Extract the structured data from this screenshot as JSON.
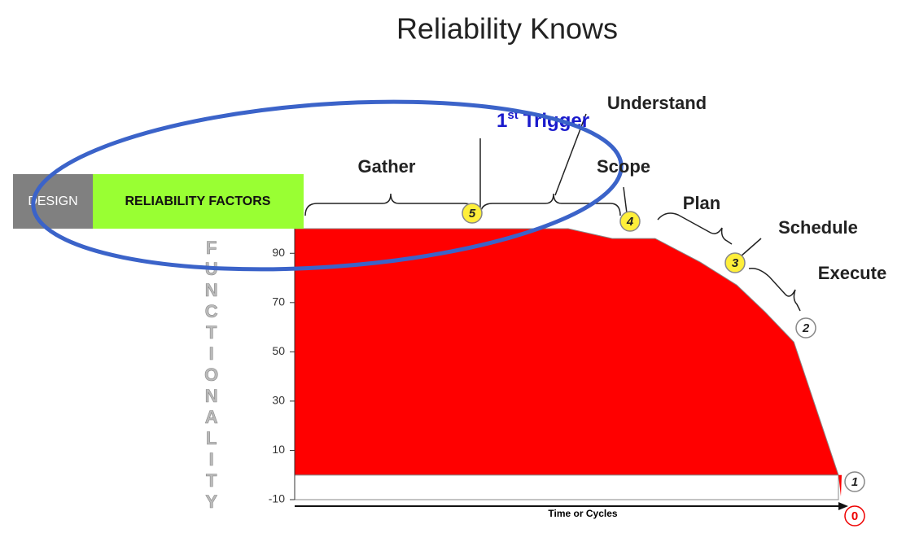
{
  "title": "Reliability Knows",
  "badge": {
    "left": "DESIGN",
    "right": "RELIABILITY FACTORS"
  },
  "chart_data": {
    "type": "area",
    "color": "#ff0000",
    "x": [
      0,
      50.3,
      58.4,
      66.3,
      74.6,
      81.3,
      86.5,
      91.8,
      100
    ],
    "values": [
      100,
      100,
      96,
      96,
      86.4,
      77.1,
      66.2,
      54,
      0
    ],
    "xlim": [
      0,
      100
    ],
    "ylim": [
      -10,
      100
    ],
    "yticks": [
      90,
      70,
      50,
      30,
      10,
      -10
    ],
    "ylabel": "FUNCTIONALITY",
    "xlabel": "Time or Cycles"
  },
  "stages": [
    "Gather",
    "Understand",
    "Scope",
    "Plan",
    "Schedule",
    "Execute"
  ],
  "trigger": {
    "number": "1",
    "suffix": "st",
    "word": "Trigger"
  },
  "markers": [
    5,
    4,
    3,
    2,
    1,
    0
  ]
}
